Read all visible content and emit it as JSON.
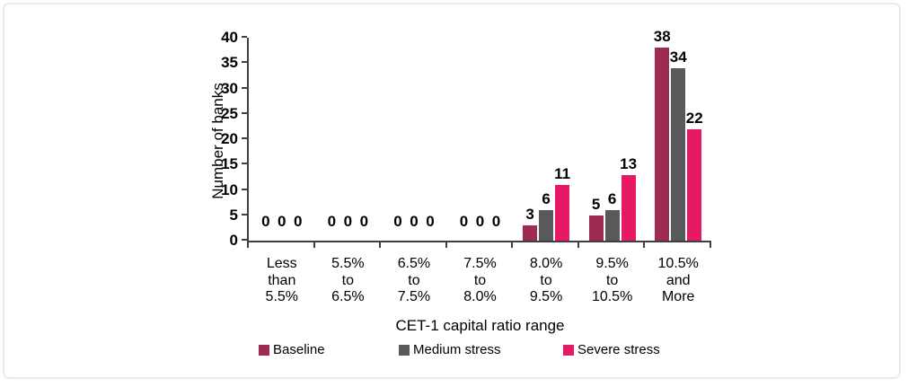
{
  "chart_data": {
    "type": "bar",
    "xlabel": "CET-1 capital ratio range",
    "ylabel": "Number of banks",
    "ylim": [
      0,
      40
    ],
    "ytick_step": 5,
    "grid": false,
    "legend_position": "bottom",
    "bar_value_labels": true,
    "categories": [
      [
        "Less",
        "than",
        "5.5%"
      ],
      [
        "5.5%",
        "to",
        "6.5%"
      ],
      [
        "6.5%",
        "to",
        "7.5%"
      ],
      [
        "7.5%",
        "to",
        "8.0%"
      ],
      [
        "8.0%",
        "to",
        "9.5%"
      ],
      [
        "9.5%",
        "to",
        "10.5%"
      ],
      [
        "10.5%",
        "and",
        "More"
      ]
    ],
    "series": [
      {
        "name": "Baseline",
        "color": "#9E2B52",
        "values": [
          0,
          0,
          0,
          0,
          3,
          5,
          38
        ]
      },
      {
        "name": "Medium stress",
        "color": "#58595B",
        "values": [
          0,
          0,
          0,
          0,
          6,
          6,
          34
        ]
      },
      {
        "name": "Severe stress",
        "color": "#E61A64",
        "values": [
          0,
          0,
          0,
          0,
          11,
          13,
          22
        ]
      }
    ],
    "axis_color": "#3F3F3F"
  }
}
